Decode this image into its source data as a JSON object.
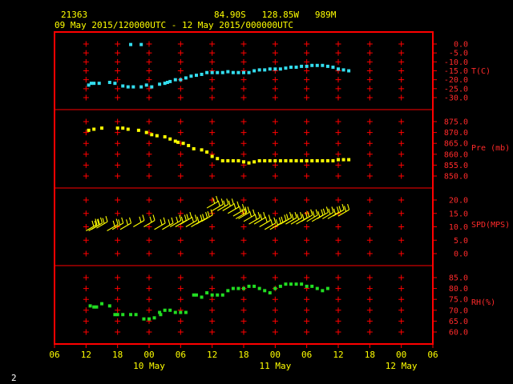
{
  "header": {
    "station": "21363",
    "location": "84.90S   128.85W   989M",
    "period": "09 May 2015/120000UTC - 12 May 2015/000000UTC"
  },
  "corner_label": "2",
  "colors": {
    "background": "#000000",
    "frame": "#ff0000",
    "label_text": "#ff2a2a",
    "axis_text": "#ffff00",
    "temperature": "#33ddee",
    "pressure": "#ffff00",
    "wind": "#ffff00",
    "humidity": "#22dd22"
  },
  "chart_data": {
    "type": "scatter",
    "x_axis": {
      "unit": "hours since 09 May 2015 06 UTC",
      "range": [
        0,
        72
      ],
      "tick_labels": [
        "06",
        "12",
        "18",
        "00",
        "06",
        "12",
        "18",
        "00",
        "06",
        "12",
        "18",
        "00",
        "06"
      ],
      "date_labels": [
        {
          "text": "10 May",
          "hour": 18
        },
        {
          "text": "11 May",
          "hour": 42
        },
        {
          "text": "12 May",
          "hour": 66
        }
      ]
    },
    "panels": [
      {
        "name": "T(C)",
        "ticks": [
          "0.0",
          "-5.0",
          "-10.0",
          "-15.0",
          "-20.0",
          "-25.0",
          "-30.0"
        ],
        "ylim": [
          -30,
          0
        ],
        "marker": "square",
        "color": "#33ddee",
        "points": [
          [
            14.5,
            -0.3
          ],
          [
            16.5,
            -0.3
          ],
          [
            6.5,
            -23
          ],
          [
            7,
            -22
          ],
          [
            7.5,
            -22
          ],
          [
            8.5,
            -22
          ],
          [
            10.5,
            -21.5
          ],
          [
            11.5,
            -22
          ],
          [
            13,
            -23.5
          ],
          [
            14,
            -24
          ],
          [
            15,
            -24
          ],
          [
            16.5,
            -24
          ],
          [
            17.5,
            -23
          ],
          [
            18.5,
            -24
          ],
          [
            20,
            -22.5
          ],
          [
            21,
            -22
          ],
          [
            21.5,
            -21.5
          ],
          [
            22,
            -21
          ],
          [
            23,
            -20
          ],
          [
            24,
            -20
          ],
          [
            25,
            -19
          ],
          [
            26,
            -18
          ],
          [
            27,
            -17.5
          ],
          [
            28,
            -17
          ],
          [
            29,
            -16
          ],
          [
            30,
            -16
          ],
          [
            31,
            -16
          ],
          [
            32,
            -16
          ],
          [
            33,
            -15.5
          ],
          [
            34,
            -16
          ],
          [
            35,
            -16
          ],
          [
            36,
            -16
          ],
          [
            37,
            -16
          ],
          [
            38,
            -15
          ],
          [
            39,
            -14.5
          ],
          [
            40,
            -14.5
          ],
          [
            41,
            -14
          ],
          [
            42,
            -14
          ],
          [
            43,
            -14
          ],
          [
            44,
            -13.5
          ],
          [
            45,
            -13
          ],
          [
            46,
            -13
          ],
          [
            47,
            -12.5
          ],
          [
            48,
            -12.5
          ],
          [
            49,
            -12
          ],
          [
            50,
            -12
          ],
          [
            51,
            -12
          ],
          [
            52,
            -12.5
          ],
          [
            53,
            -13
          ],
          [
            54,
            -14
          ],
          [
            55,
            -14.5
          ],
          [
            56,
            -15
          ]
        ]
      },
      {
        "name": "Pre (mb)",
        "ticks": [
          "875.0",
          "870.0",
          "865.0",
          "860.0",
          "855.0",
          "850.0"
        ],
        "ylim": [
          850,
          875
        ],
        "marker": "square",
        "color": "#ffff00",
        "points": [
          [
            6.5,
            871
          ],
          [
            7.5,
            871.5
          ],
          [
            9,
            872
          ],
          [
            12,
            872
          ],
          [
            13,
            872
          ],
          [
            14,
            871.5
          ],
          [
            16,
            871
          ],
          [
            17.5,
            870
          ],
          [
            18.5,
            869
          ],
          [
            19.5,
            868.5
          ],
          [
            21,
            868
          ],
          [
            22,
            867
          ],
          [
            23,
            866
          ],
          [
            23.5,
            865.5
          ],
          [
            24.5,
            865
          ],
          [
            25.5,
            864
          ],
          [
            26.5,
            862.5
          ],
          [
            28,
            862
          ],
          [
            29,
            861
          ],
          [
            30,
            859
          ],
          [
            31,
            858
          ],
          [
            32,
            857
          ],
          [
            33,
            857
          ],
          [
            34,
            857
          ],
          [
            35,
            857
          ],
          [
            36,
            856.5
          ],
          [
            37,
            856
          ],
          [
            38,
            856.5
          ],
          [
            39,
            857
          ],
          [
            40,
            857
          ],
          [
            41,
            857
          ],
          [
            42,
            857
          ],
          [
            43,
            857
          ],
          [
            44,
            857
          ],
          [
            45,
            857
          ],
          [
            46,
            857
          ],
          [
            47,
            857
          ],
          [
            48,
            857
          ],
          [
            49,
            857
          ],
          [
            50,
            857
          ],
          [
            51,
            857
          ],
          [
            52,
            857
          ],
          [
            53,
            857
          ],
          [
            54,
            857.5
          ],
          [
            55,
            857.5
          ],
          [
            56,
            857.5
          ]
        ]
      },
      {
        "name": "SPD(MPS)",
        "ticks": [
          "20.0",
          "15.0",
          "10.0",
          "5.0",
          "0.0"
        ],
        "ylim": [
          0,
          20
        ],
        "marker": "wind-barb",
        "color": "#ffff00",
        "points": [
          [
            6,
            8.5
          ],
          [
            6.5,
            8.5
          ],
          [
            7,
            9
          ],
          [
            8,
            9.5
          ],
          [
            10,
            8.5
          ],
          [
            11,
            9
          ],
          [
            12.5,
            9
          ],
          [
            15,
            10
          ],
          [
            17,
            10
          ],
          [
            19,
            9
          ],
          [
            20.5,
            9
          ],
          [
            22,
            10
          ],
          [
            23,
            10
          ],
          [
            24,
            11
          ],
          [
            25,
            10
          ],
          [
            26,
            10
          ],
          [
            27,
            11
          ],
          [
            28,
            12
          ],
          [
            29,
            17
          ],
          [
            30,
            16
          ],
          [
            31,
            16
          ],
          [
            32,
            16
          ],
          [
            33,
            15
          ],
          [
            34,
            14
          ],
          [
            34.5,
            13
          ],
          [
            35,
            13
          ],
          [
            36,
            12
          ],
          [
            37,
            11
          ],
          [
            38,
            11
          ],
          [
            39,
            10
          ],
          [
            40,
            9
          ],
          [
            41,
            9
          ],
          [
            42,
            10
          ],
          [
            43,
            11
          ],
          [
            44,
            11
          ],
          [
            45,
            11
          ],
          [
            46,
            11
          ],
          [
            47,
            12
          ],
          [
            48,
            12
          ],
          [
            49,
            12
          ],
          [
            50,
            13
          ],
          [
            51,
            13
          ],
          [
            52,
            13
          ],
          [
            53,
            14
          ],
          [
            54,
            14
          ]
        ]
      },
      {
        "name": "RH(%)",
        "ticks": [
          "85.0",
          "80.0",
          "75.0",
          "70.0",
          "65.0",
          "60.0"
        ],
        "ylim": [
          60,
          85
        ],
        "marker": "square",
        "color": "#22dd22",
        "points": [
          [
            6.8,
            72
          ],
          [
            7.5,
            71.5
          ],
          [
            8,
            71.5
          ],
          [
            9,
            73
          ],
          [
            10.5,
            72
          ],
          [
            11.5,
            68
          ],
          [
            12,
            68
          ],
          [
            13,
            68
          ],
          [
            14.5,
            68
          ],
          [
            15.5,
            68
          ],
          [
            17,
            66
          ],
          [
            18,
            66
          ],
          [
            19,
            66.5
          ],
          [
            20,
            69
          ],
          [
            20.2,
            68
          ],
          [
            21,
            70
          ],
          [
            22,
            70
          ],
          [
            23,
            69
          ],
          [
            24,
            69
          ],
          [
            25,
            69
          ],
          [
            26.5,
            77
          ],
          [
            27,
            77
          ],
          [
            28,
            76
          ],
          [
            29,
            78
          ],
          [
            30,
            77
          ],
          [
            31,
            77
          ],
          [
            32,
            77
          ],
          [
            33,
            79
          ],
          [
            34,
            80
          ],
          [
            35,
            80
          ],
          [
            36,
            80
          ],
          [
            37,
            81
          ],
          [
            38,
            81
          ],
          [
            39,
            80
          ],
          [
            40,
            79
          ],
          [
            41,
            78
          ],
          [
            42,
            80
          ],
          [
            43,
            81
          ],
          [
            44,
            82
          ],
          [
            45,
            82
          ],
          [
            46,
            82
          ],
          [
            47,
            82
          ],
          [
            48,
            81
          ],
          [
            49,
            81
          ],
          [
            50,
            80
          ],
          [
            51,
            79
          ],
          [
            52,
            80
          ]
        ]
      }
    ]
  }
}
